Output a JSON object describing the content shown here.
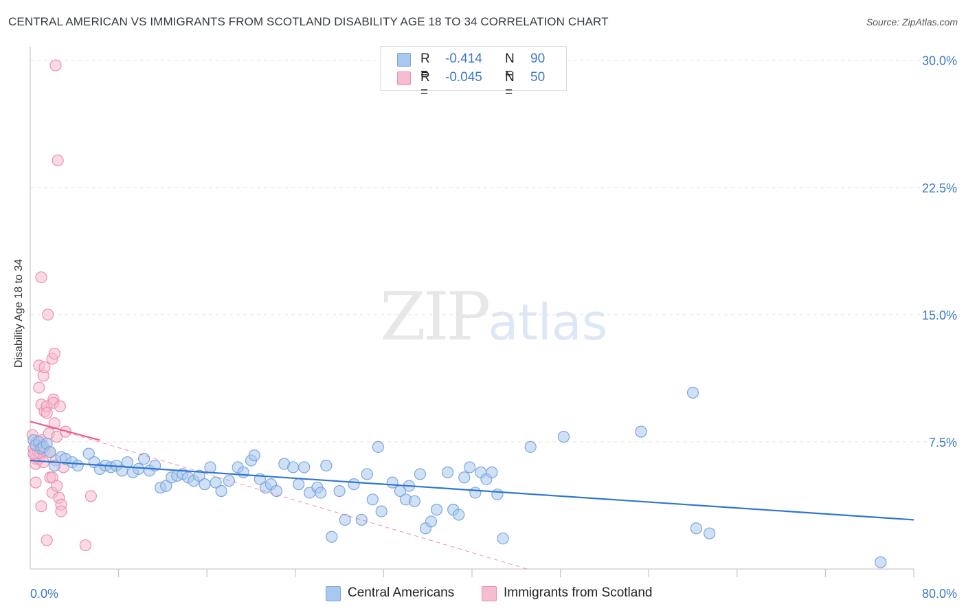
{
  "header": {
    "title": "CENTRAL AMERICAN VS IMMIGRANTS FROM SCOTLAND DISABILITY AGE 18 TO 34 CORRELATION CHART",
    "source": "Source: ZipAtlas.com"
  },
  "watermark": {
    "zip": "ZIP",
    "atlas": "atlas"
  },
  "legend": {
    "rows": [
      {
        "r_label": "R =",
        "r_value": "-0.414",
        "n_label": "N =",
        "n_value": "90"
      },
      {
        "r_label": "R =",
        "r_value": "-0.045",
        "n_label": "N =",
        "n_value": "50"
      }
    ]
  },
  "bottom_legend": {
    "central": "Central Americans",
    "scotland": "Immigrants from Scotland"
  },
  "colors": {
    "blue_fill": "#a9c8ef",
    "blue_stroke": "#7aa6de",
    "blue_line": "#2f75d0",
    "pink_fill": "#f6bcd0",
    "pink_stroke": "#ec8fb0",
    "pink_line": "#e8608e",
    "tick_label": "#3a78c9",
    "grid": "#e3e3e3"
  },
  "chart_data": {
    "type": "scatter",
    "title": "CENTRAL AMERICAN VS IMMIGRANTS FROM SCOTLAND DISABILITY AGE 18 TO 34 CORRELATION CHART",
    "xlabel": "",
    "ylabel": "Disability Age 18 to 34",
    "xlim": [
      0,
      80
    ],
    "ylim": [
      0,
      30.8
    ],
    "x_tick_labels": [
      "0.0%",
      "80.0%"
    ],
    "y_ticks": [
      {
        "value": 7.5,
        "label": "7.5%"
      },
      {
        "value": 15.0,
        "label": "15.0%"
      },
      {
        "value": 22.5,
        "label": "22.5%"
      },
      {
        "value": 30.0,
        "label": "30.0%"
      }
    ],
    "series": [
      {
        "name": "Central Americans",
        "r": -0.414,
        "n": 90,
        "trend": {
          "x0": 0,
          "y0": 6.4,
          "x1": 80,
          "y1": 2.9
        },
        "points": [
          [
            0.3,
            7.6
          ],
          [
            0.5,
            7.3
          ],
          [
            0.8,
            7.5
          ],
          [
            1.0,
            7.1
          ],
          [
            1.2,
            7.2
          ],
          [
            1.5,
            7.4
          ],
          [
            1.8,
            6.9
          ],
          [
            2.2,
            6.1
          ],
          [
            2.8,
            6.6
          ],
          [
            3.2,
            6.5
          ],
          [
            3.8,
            6.3
          ],
          [
            4.3,
            6.1
          ],
          [
            5.3,
            6.8
          ],
          [
            5.8,
            6.3
          ],
          [
            6.3,
            5.9
          ],
          [
            6.8,
            6.1
          ],
          [
            7.3,
            6.0
          ],
          [
            7.8,
            6.1
          ],
          [
            8.3,
            5.8
          ],
          [
            8.8,
            6.3
          ],
          [
            9.3,
            5.7
          ],
          [
            9.8,
            5.9
          ],
          [
            10.3,
            6.5
          ],
          [
            10.8,
            5.8
          ],
          [
            11.3,
            6.1
          ],
          [
            11.8,
            4.8
          ],
          [
            12.3,
            4.9
          ],
          [
            12.8,
            5.4
          ],
          [
            13.3,
            5.5
          ],
          [
            13.8,
            5.6
          ],
          [
            14.3,
            5.4
          ],
          [
            14.8,
            5.2
          ],
          [
            15.3,
            5.5
          ],
          [
            15.8,
            5.0
          ],
          [
            16.3,
            6.0
          ],
          [
            16.8,
            5.1
          ],
          [
            17.3,
            4.6
          ],
          [
            18.0,
            5.2
          ],
          [
            18.8,
            6.0
          ],
          [
            19.3,
            5.7
          ],
          [
            20.0,
            6.4
          ],
          [
            20.3,
            6.7
          ],
          [
            20.8,
            5.3
          ],
          [
            21.3,
            4.8
          ],
          [
            21.8,
            5.0
          ],
          [
            22.3,
            4.6
          ],
          [
            23.0,
            6.2
          ],
          [
            23.8,
            6.0
          ],
          [
            24.3,
            5.0
          ],
          [
            24.8,
            6.0
          ],
          [
            25.3,
            4.5
          ],
          [
            26.0,
            4.8
          ],
          [
            26.3,
            4.5
          ],
          [
            26.8,
            6.1
          ],
          [
            27.3,
            1.9
          ],
          [
            28.0,
            4.6
          ],
          [
            28.5,
            2.9
          ],
          [
            29.3,
            5.0
          ],
          [
            30.0,
            2.9
          ],
          [
            30.5,
            5.6
          ],
          [
            31.0,
            4.1
          ],
          [
            31.5,
            7.2
          ],
          [
            31.8,
            3.4
          ],
          [
            32.8,
            5.1
          ],
          [
            33.5,
            4.6
          ],
          [
            34.0,
            4.1
          ],
          [
            34.3,
            4.9
          ],
          [
            34.8,
            4.0
          ],
          [
            35.3,
            5.6
          ],
          [
            35.8,
            2.4
          ],
          [
            36.3,
            2.8
          ],
          [
            36.8,
            3.5
          ],
          [
            37.8,
            5.7
          ],
          [
            38.3,
            3.5
          ],
          [
            38.8,
            3.2
          ],
          [
            39.3,
            5.4
          ],
          [
            39.8,
            6.0
          ],
          [
            40.3,
            4.5
          ],
          [
            40.8,
            5.7
          ],
          [
            41.3,
            5.3
          ],
          [
            41.8,
            5.7
          ],
          [
            42.3,
            4.4
          ],
          [
            42.8,
            1.8
          ],
          [
            45.3,
            7.2
          ],
          [
            48.3,
            7.8
          ],
          [
            55.3,
            8.1
          ],
          [
            60.0,
            10.4
          ],
          [
            60.3,
            2.4
          ],
          [
            61.5,
            2.1
          ],
          [
            77.0,
            0.4
          ]
        ]
      },
      {
        "name": "Immigrants from Scotland",
        "r": -0.045,
        "n": 50,
        "trend": {
          "x0": 0,
          "y0": 8.7,
          "x1": 6.3,
          "y1": 7.6
        },
        "trend_dashed": {
          "x0": 0,
          "y0": 8.7,
          "x1": 45,
          "y1": 0
        },
        "points": [
          [
            0.2,
            7.9
          ],
          [
            0.3,
            7.1
          ],
          [
            0.4,
            6.7
          ],
          [
            0.5,
            6.5
          ],
          [
            0.5,
            6.2
          ],
          [
            0.6,
            7.5
          ],
          [
            0.7,
            6.9
          ],
          [
            0.8,
            6.5
          ],
          [
            0.9,
            6.8
          ],
          [
            1.0,
            7.6
          ],
          [
            1.1,
            7.3
          ],
          [
            1.2,
            6.3
          ],
          [
            1.3,
            7.0
          ],
          [
            0.3,
            6.8
          ],
          [
            0.5,
            5.1
          ],
          [
            0.8,
            12.0
          ],
          [
            0.8,
            10.7
          ],
          [
            1.0,
            9.7
          ],
          [
            1.2,
            11.4
          ],
          [
            1.3,
            11.9
          ],
          [
            1.3,
            9.3
          ],
          [
            1.5,
            9.6
          ],
          [
            1.5,
            9.2
          ],
          [
            1.6,
            15.0
          ],
          [
            1.7,
            8.0
          ],
          [
            1.8,
            6.9
          ],
          [
            1.8,
            5.4
          ],
          [
            2.0,
            5.4
          ],
          [
            2.0,
            4.5
          ],
          [
            2.0,
            12.4
          ],
          [
            2.1,
            10.0
          ],
          [
            2.1,
            9.8
          ],
          [
            2.2,
            8.6
          ],
          [
            2.2,
            12.7
          ],
          [
            2.3,
            6.4
          ],
          [
            2.4,
            7.8
          ],
          [
            2.4,
            4.9
          ],
          [
            2.6,
            4.2
          ],
          [
            2.7,
            9.6
          ],
          [
            2.8,
            3.8
          ],
          [
            2.8,
            3.4
          ],
          [
            3.0,
            6.0
          ],
          [
            3.2,
            8.1
          ],
          [
            1.0,
            17.2
          ],
          [
            2.5,
            24.1
          ],
          [
            2.3,
            29.7
          ],
          [
            1.0,
            3.7
          ],
          [
            1.5,
            1.7
          ],
          [
            5.0,
            1.4
          ],
          [
            5.5,
            4.3
          ]
        ]
      }
    ]
  }
}
